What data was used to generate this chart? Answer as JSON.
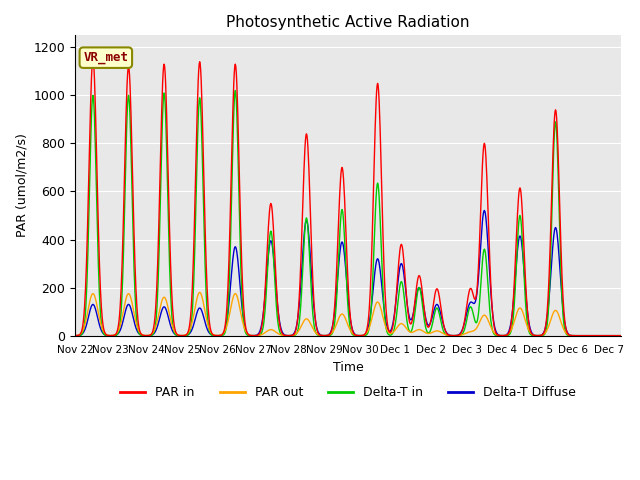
{
  "title": "Photosynthetic Active Radiation",
  "ylabel": "PAR (umol/m2/s)",
  "xlabel": "Time",
  "ylim": [
    0,
    1250
  ],
  "xlim": [
    0,
    1104
  ],
  "background_color": "#e8e8e8",
  "annotation_text": "VR_met",
  "annotation_bg": "#ffffcc",
  "annotation_border": "#888800",
  "legend_labels": [
    "PAR in",
    "PAR out",
    "Delta-T in",
    "Delta-T Diffuse"
  ],
  "legend_colors": [
    "#ff0000",
    "#ffa500",
    "#00cc00",
    "#0000cc"
  ],
  "tick_labels": [
    "Nov 22",
    "Nov 23",
    "Nov 24",
    "Nov 25",
    "Nov 26",
    "Nov 27",
    "Nov 28",
    "Nov 29",
    "Nov 30",
    "Dec 1",
    "Dec 2",
    "Dec 3",
    "Dec 4",
    "Dec 5",
    "Dec 6",
    "Dec 7"
  ],
  "tick_positions": [
    0,
    72,
    144,
    216,
    288,
    360,
    432,
    504,
    576,
    648,
    720,
    792,
    864,
    936,
    1008,
    1080
  ],
  "n_points": 1104,
  "yticks": [
    0,
    200,
    400,
    600,
    800,
    1000,
    1200
  ],
  "par_in_peaks": [
    [
      36,
      1150
    ],
    [
      108,
      1120
    ],
    [
      180,
      1130
    ],
    [
      252,
      1140
    ],
    [
      324,
      1130
    ],
    [
      396,
      550
    ],
    [
      468,
      840
    ],
    [
      540,
      700
    ],
    [
      612,
      1050
    ],
    [
      660,
      380
    ],
    [
      696,
      250
    ],
    [
      732,
      195
    ],
    [
      800,
      195
    ],
    [
      828,
      800
    ],
    [
      900,
      615
    ],
    [
      972,
      940
    ]
  ],
  "par_out_peaks": [
    [
      36,
      175
    ],
    [
      108,
      175
    ],
    [
      180,
      160
    ],
    [
      252,
      180
    ],
    [
      324,
      175
    ],
    [
      396,
      25
    ],
    [
      468,
      70
    ],
    [
      540,
      90
    ],
    [
      612,
      140
    ],
    [
      660,
      50
    ],
    [
      696,
      25
    ],
    [
      732,
      20
    ],
    [
      800,
      15
    ],
    [
      828,
      85
    ],
    [
      900,
      115
    ],
    [
      972,
      105
    ]
  ],
  "delta_t_in_peaks": [
    [
      36,
      1000
    ],
    [
      108,
      1000
    ],
    [
      180,
      1010
    ],
    [
      252,
      990
    ],
    [
      324,
      1020
    ],
    [
      396,
      435
    ],
    [
      468,
      490
    ],
    [
      540,
      525
    ],
    [
      612,
      635
    ],
    [
      660,
      225
    ],
    [
      696,
      200
    ],
    [
      732,
      115
    ],
    [
      800,
      120
    ],
    [
      828,
      360
    ],
    [
      900,
      500
    ],
    [
      972,
      890
    ]
  ],
  "delta_t_diff_peaks": [
    [
      36,
      130
    ],
    [
      108,
      130
    ],
    [
      180,
      120
    ],
    [
      252,
      115
    ],
    [
      324,
      370
    ],
    [
      396,
      395
    ],
    [
      468,
      480
    ],
    [
      540,
      390
    ],
    [
      612,
      320
    ],
    [
      660,
      300
    ],
    [
      696,
      200
    ],
    [
      732,
      130
    ],
    [
      800,
      135
    ],
    [
      828,
      520
    ],
    [
      900,
      415
    ],
    [
      972,
      450
    ]
  ]
}
